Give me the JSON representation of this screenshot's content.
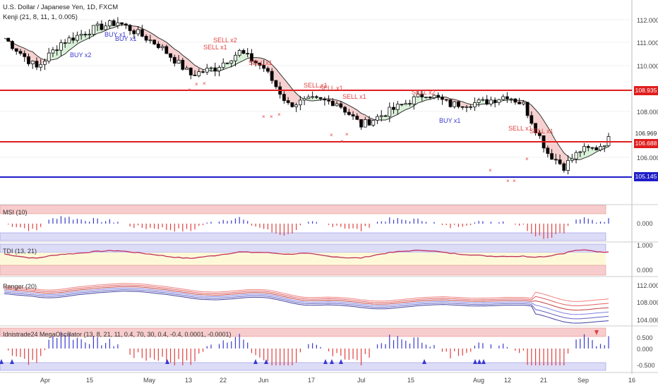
{
  "header": {
    "title": "U.S. Dollar / Japanese Yen, 1D, FXCM",
    "indicator": "Kenji (21, 8, 11, 1, 0.005)"
  },
  "price_axis": {
    "ticks": [
      "112.000",
      "111.000",
      "110.000",
      "108.000",
      "106.000"
    ],
    "last_price": "106.969",
    "levels": [
      {
        "label": "108.935",
        "color": "#e01e1e"
      },
      {
        "label": "106.688",
        "color": "#e01e1e"
      },
      {
        "label": "105.145",
        "color": "#1e1ec8"
      }
    ]
  },
  "signals": {
    "buy": [
      {
        "text": "BUY x2"
      },
      {
        "text": "BUY x1"
      },
      {
        "text": "BUY x1"
      },
      {
        "text": "BUY x1"
      }
    ],
    "sell": [
      {
        "text": "SELL x2"
      },
      {
        "text": "SELL x1"
      },
      {
        "text": "SELL x1"
      },
      {
        "text": "SELL x1"
      },
      {
        "text": "SELL x1"
      },
      {
        "text": "SELL x1"
      },
      {
        "text": "SELL x2"
      },
      {
        "text": "SELL x1"
      },
      {
        "text": "SELL x1"
      }
    ]
  },
  "panels": {
    "msi": {
      "label": "MSI (10)",
      "tick": "0.000"
    },
    "tdi": {
      "label": "TDI (13, 21)",
      "ticks": [
        "1.000",
        "0.000"
      ]
    },
    "ranger": {
      "label": "Ranger (20)",
      "ticks": [
        "112.000",
        "108.000",
        "104.000"
      ]
    },
    "mega": {
      "label": "Idnistrade24 MegaOscillator (13, 8, 21, 11, 0.4, 70, 30, 0.4, -0.4, 0.0001, -0.0001)",
      "ticks": [
        "0.500",
        "0.000",
        "-0.500"
      ]
    }
  },
  "time_axis": [
    "Apr",
    "15",
    "May",
    "13",
    "22",
    "Jun",
    "17",
    "Jul",
    "15",
    "Aug",
    "12",
    "21",
    "Sep",
    "16"
  ],
  "colors": {
    "up": "#ffffff",
    "down": "#000000",
    "sell_cloud": "#f5c6c6",
    "buy_cloud": "#cfeecf",
    "buy": "#3a3ad0",
    "sell": "#e04040"
  }
}
